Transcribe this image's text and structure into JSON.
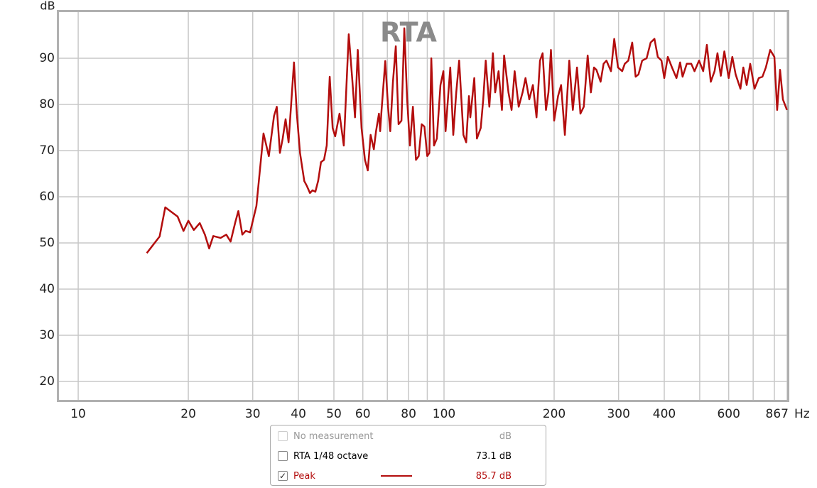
{
  "chart_data": {
    "type": "line",
    "title": "RTA",
    "y_label": "dB",
    "x_label": "Hz",
    "log_x": true,
    "grid": true,
    "xlim": [
      8.86,
      867
    ],
    "ylim": [
      16,
      100
    ],
    "xticks": [
      10,
      20,
      30,
      40,
      50,
      60,
      80,
      100,
      200,
      300,
      400,
      600,
      867
    ],
    "xminor": [
      70,
      90,
      500,
      700,
      800
    ],
    "yticks": [
      20,
      30,
      40,
      50,
      60,
      70,
      80,
      90
    ],
    "series": [
      {
        "name": "Peak",
        "color": "#b30d0d",
        "reading": "85.7 dB",
        "checked": true,
        "x": [
          15.4,
          16.7,
          17.3,
          18.7,
          19.4,
          20,
          20.7,
          21.5,
          22.2,
          22.8,
          23.4,
          24.5,
          25.4,
          26.1,
          26.9,
          27.4,
          28.1,
          28.7,
          29.5,
          30.7,
          32.1,
          33.2,
          34.3,
          34.9,
          35.6,
          36.2,
          36.9,
          37.6,
          38.9,
          39.6,
          40.4,
          41.5,
          42.2,
          43.0,
          43.7,
          44.5,
          45.3,
          46.1,
          47.0,
          47.8,
          48.7,
          49.6,
          50.4,
          51.8,
          53.2,
          54.9,
          56.1,
          57.1,
          58.1,
          59.5,
          60.8,
          61.9,
          63.0,
          64.3,
          65.2,
          66.4,
          66.9,
          67.5,
          69.1,
          70.3,
          71.3,
          72.5,
          73.8,
          75.1,
          76.5,
          77.9,
          79.3,
          80.7,
          82.2,
          83.8,
          85.3,
          86.9,
          88.4,
          90,
          91.2,
          92.3,
          93.9,
          95.6,
          97.8,
          99.6,
          101,
          104,
          106,
          108,
          110,
          113,
          115,
          117,
          118,
          121,
          123,
          126,
          128,
          130,
          133,
          136,
          138,
          141,
          144,
          146,
          150,
          153,
          156,
          160,
          164,
          167,
          171,
          175,
          179,
          183,
          186,
          190,
          193,
          196,
          200,
          205,
          209,
          214,
          220,
          225,
          231,
          236,
          241,
          247,
          252,
          257,
          261,
          268,
          273,
          278,
          286,
          292,
          299,
          307,
          312,
          319,
          327,
          334,
          340,
          348,
          358,
          367,
          376,
          384,
          393,
          400,
          409,
          420,
          432,
          442,
          449,
          461,
          474,
          484,
          498,
          511,
          523,
          536,
          549,
          559,
          571,
          584,
          600,
          614,
          627,
          646,
          658,
          672,
          687,
          706,
          725,
          742,
          758,
          779,
          800,
          814,
          829,
          844,
          866
        ],
        "values": [
          47.8,
          51.4,
          57.7,
          55.7,
          52.6,
          54.8,
          52.8,
          54.3,
          51.8,
          48.8,
          51.5,
          51.1,
          51.8,
          50.3,
          54.6,
          56.9,
          51.8,
          52.6,
          52.3,
          58.0,
          73.7,
          68.8,
          77.5,
          79.5,
          69.5,
          72.5,
          76.8,
          71.8,
          89.1,
          78.0,
          69.5,
          63.4,
          62.3,
          60.8,
          61.4,
          61.1,
          63.5,
          67.5,
          68.0,
          71.1,
          86.0,
          74.9,
          73.1,
          78.0,
          71.1,
          95.2,
          85.7,
          77.2,
          91.8,
          74.9,
          68.0,
          65.7,
          73.4,
          70.3,
          74.2,
          78.0,
          74.2,
          78.8,
          89.4,
          79.5,
          74.2,
          84.9,
          92.6,
          75.7,
          76.5,
          96.5,
          81.1,
          71.1,
          79.5,
          68.0,
          68.8,
          75.7,
          75.2,
          68.8,
          69.5,
          90.0,
          71.1,
          72.6,
          84.2,
          87.2,
          74.2,
          88.0,
          73.4,
          82.6,
          89.5,
          73.4,
          71.8,
          81.8,
          77.2,
          85.7,
          72.6,
          74.9,
          81.1,
          89.5,
          79.5,
          91.1,
          82.6,
          87.2,
          78.8,
          90.6,
          82.6,
          78.8,
          87.2,
          79.5,
          82.6,
          85.7,
          81.1,
          84.2,
          77.2,
          89.5,
          91.1,
          78.8,
          82.6,
          91.8,
          76.5,
          81.8,
          84.2,
          73.4,
          89.5,
          78.8,
          88.0,
          78.0,
          79.5,
          90.6,
          82.6,
          88.0,
          87.5,
          84.9,
          88.8,
          89.5,
          87.2,
          94.2,
          88.0,
          87.2,
          88.8,
          89.5,
          93.4,
          86.0,
          86.5,
          89.5,
          90.0,
          93.4,
          94.2,
          90.3,
          89.5,
          85.7,
          90.3,
          88.0,
          85.7,
          89.1,
          86.0,
          88.8,
          88.8,
          87.2,
          89.5,
          87.2,
          92.9,
          84.9,
          87.2,
          91.1,
          86.2,
          91.5,
          85.7,
          90.3,
          86.5,
          83.4,
          88.0,
          84.2,
          88.8,
          83.4,
          85.7,
          86.0,
          88.0,
          91.8,
          90.3,
          78.8,
          87.5,
          81.1,
          78.8
        ]
      }
    ],
    "legend_rows": [
      {
        "label": "No measurement",
        "reading": "dB",
        "checked": false,
        "enabled": false
      },
      {
        "label": "RTA 1/48 octave",
        "reading": "73.1 dB",
        "checked": false,
        "enabled": true
      }
    ]
  }
}
